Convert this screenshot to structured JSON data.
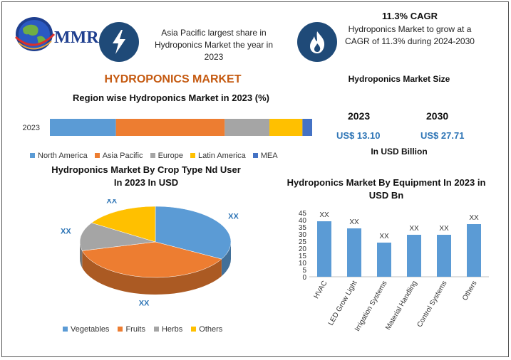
{
  "brand": {
    "logo_text": "MMR"
  },
  "highlights": {
    "share_text": "Asia Pacific largest share in Hydroponics Market the year in 2023",
    "cagr_title": "11.3% CAGR",
    "cagr_text": "Hydroponics Market to grow at a CAGR of 11.3% during 2024-2030",
    "share_icon": "lightning-icon",
    "cagr_icon": "flame-icon"
  },
  "main_title": "HYDROPONICS MARKET",
  "market_size": {
    "title": "Hydroponics Market Size",
    "year_a": "2023",
    "year_b": "2030",
    "value_a": "US$ 13.10",
    "value_b": "US$ 27.71",
    "unit": "In USD Billion"
  },
  "chart_data": [
    {
      "type": "bar",
      "orientation": "horizontal-stacked",
      "title": "Region wise Hydroponics Market  in 2023 (%)",
      "categories": [
        "2023"
      ],
      "series": [
        {
          "name": "North America",
          "values": [
            17
          ],
          "color": "#5b9bd5"
        },
        {
          "name": "Asia Pacific",
          "values": [
            28
          ],
          "color": "#ed7d31"
        },
        {
          "name": "Europe",
          "values": [
            11.5
          ],
          "color": "#a5a5a5"
        },
        {
          "name": "Latin America",
          "values": [
            8.5
          ],
          "color": "#ffc000"
        },
        {
          "name": "MEA",
          "values": [
            2.5
          ],
          "color": "#4472c4"
        }
      ],
      "legend": "bottom"
    },
    {
      "type": "pie",
      "title": "Hydroponics Market By Crop Type Nd User In 2023 In USD",
      "slices": [
        {
          "name": "Vegetables",
          "value": 33,
          "label": "XX",
          "color": "#5b9bd5"
        },
        {
          "name": "Fruits",
          "value": 38,
          "label": "XX",
          "color": "#ed7d31"
        },
        {
          "name": "Herbs",
          "value": 13,
          "label": "XX",
          "color": "#a5a5a5"
        },
        {
          "name": "Others",
          "value": 16,
          "label": "XX",
          "color": "#ffc000"
        }
      ],
      "legend": "bottom"
    },
    {
      "type": "bar",
      "title": "Hydroponics Market By Equipment In 2023 in USD Bn",
      "categories": [
        "HVAC",
        "LED Grow Light",
        "Irrigation Systems",
        "Material Handling",
        "Control Systems",
        "Others"
      ],
      "values": [
        39,
        34,
        24,
        29.5,
        29.5,
        37
      ],
      "data_labels": [
        "XX",
        "XX",
        "XX",
        "XX",
        "XX",
        "XX"
      ],
      "yticks": [
        "0",
        "5",
        "10",
        "15",
        "20",
        "25",
        "30",
        "35",
        "40",
        "45"
      ],
      "ylim": [
        0,
        45
      ],
      "color": "#5b9bd5",
      "grid": false
    }
  ]
}
